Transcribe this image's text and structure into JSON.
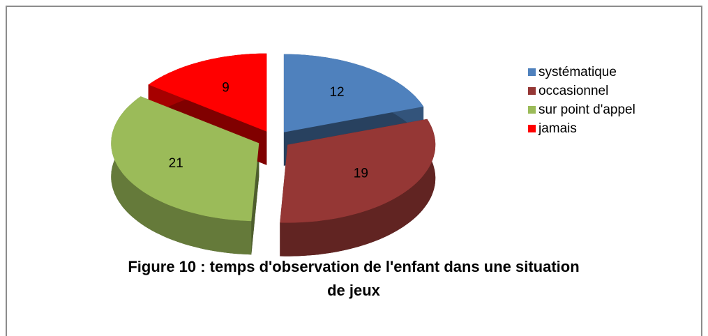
{
  "chart_data": {
    "type": "pie",
    "title": "Figure 10 : temps d'observation de l'enfant dans une situation de jeux",
    "categories": [
      "systématique",
      "occasionnel",
      "sur point d'appel",
      "jamais"
    ],
    "values": [
      12,
      19,
      21,
      9
    ],
    "colors": [
      "#4f81bd",
      "#953735",
      "#9bbb59",
      "#ff0000"
    ],
    "legend": "right"
  }
}
